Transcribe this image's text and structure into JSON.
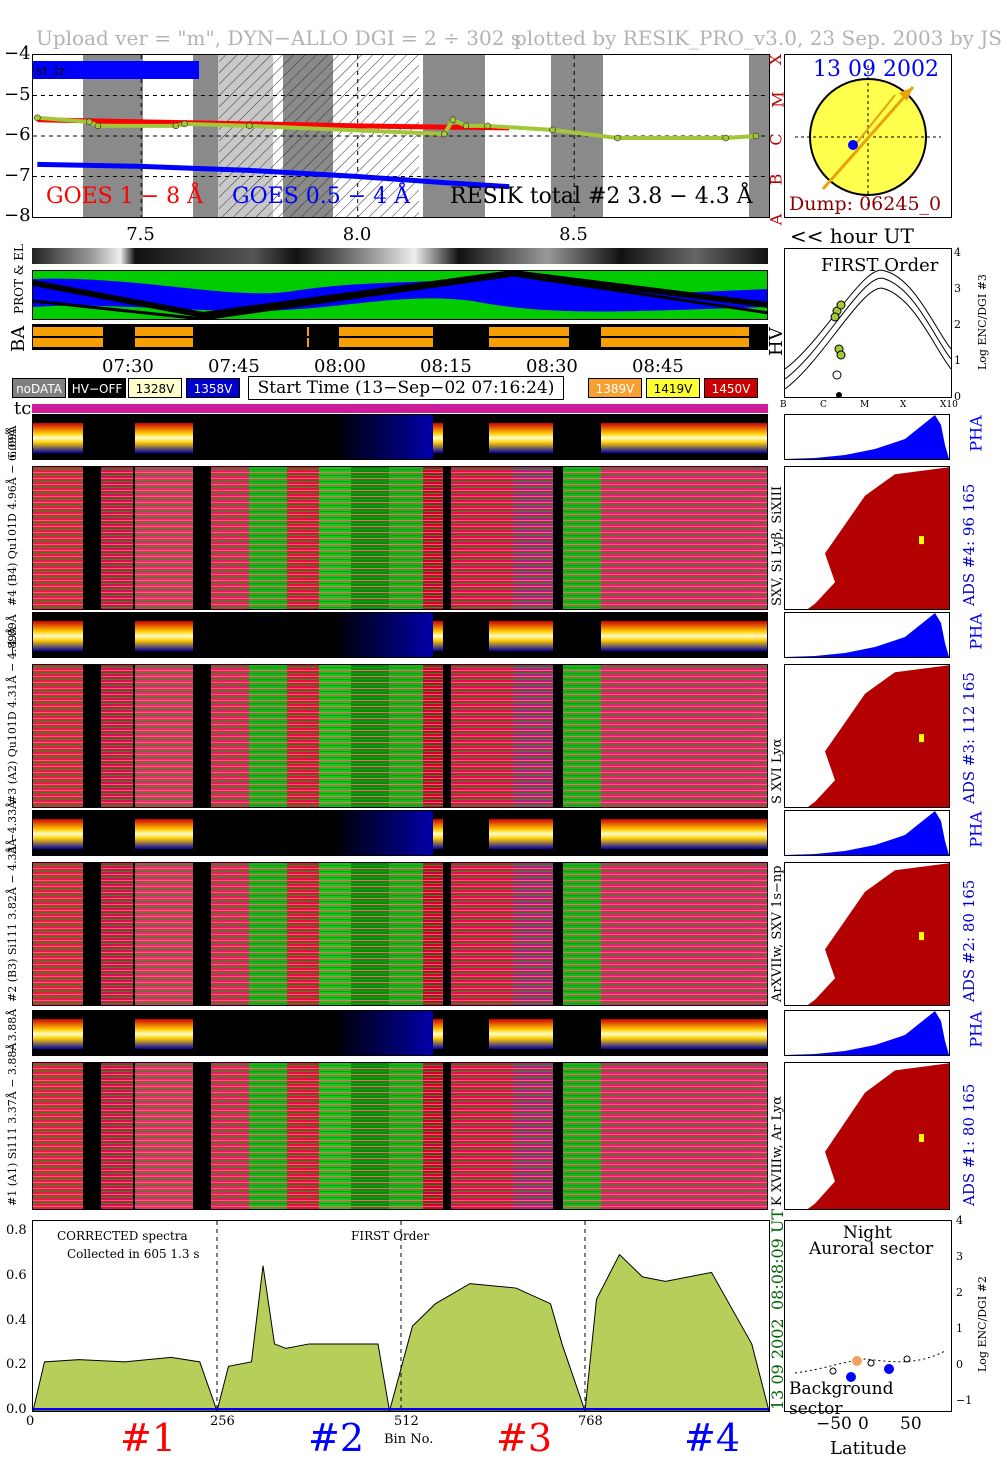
{
  "header": {
    "upload_text": "Upload ver = \"m\", DYN−ALLO DGI =   2 ÷ 302 s",
    "plotted_text": "plotted by RESIK_PRO_v3.0, 23 Sep. 2003 by JS"
  },
  "colors": {
    "goes_long": "#ff0000",
    "goes_short": "#0000ff",
    "resik_total": "#a4c639",
    "gray_band": "#808080",
    "ads_fill": "#b30000",
    "pha_fill": "#0000ff",
    "spectrum_fill": "#b5cf5a",
    "orbit_green": "#00cc00",
    "orbit_blue": "#0000ff",
    "ba_orange": "#f5a000",
    "magenta_bar": "#cc1c9a"
  },
  "top_chart": {
    "chart_data": {
      "type": "line",
      "ylim": [
        -8,
        -4
      ],
      "yticks": [
        "−4",
        "−5",
        "−6",
        "−7",
        "−8"
      ],
      "xlim": [
        7.25,
        8.95
      ],
      "xticks": [
        "7.5",
        "8.0",
        "8.5"
      ],
      "series": [
        {
          "name": "GOES 1 − 8 Å",
          "x": [
            7.26,
            7.5,
            7.75,
            8.0,
            8.2,
            8.35
          ],
          "y": [
            -5.6,
            -5.65,
            -5.7,
            -5.75,
            -5.78,
            -5.8
          ]
        },
        {
          "name": "GOES 0.5 − 4 Å",
          "x": [
            7.26,
            7.5,
            7.75,
            8.0,
            8.2,
            8.35
          ],
          "y": [
            -6.7,
            -6.75,
            -6.85,
            -7.0,
            -7.15,
            -7.25
          ]
        },
        {
          "name": "RESIK total #2  3.8 − 4.3 Å",
          "x": [
            7.26,
            7.38,
            7.4,
            7.58,
            7.6,
            7.75,
            8.2,
            8.22,
            8.25,
            8.3,
            8.45,
            8.6,
            8.85,
            8.92
          ],
          "y": [
            -5.55,
            -5.65,
            -5.75,
            -5.75,
            -5.7,
            -5.75,
            -5.95,
            -5.6,
            -5.75,
            -5.75,
            -5.85,
            -6.05,
            -6.05,
            -6.0
          ]
        }
      ]
    },
    "labels": {
      "st_label": "st_lz",
      "goes_long": "GOES 1 − 8 Å",
      "goes_short": "GOES 0.5 − 4 Å",
      "resik": "RESIK total #2  3.8 − 4.3 Å"
    },
    "class_letters": [
      "X",
      "M",
      "C",
      "B",
      "A"
    ]
  },
  "sun_panel": {
    "date": "13 09 2002",
    "dump": "Dump: 06245_0"
  },
  "hour_label": "<< hour UT",
  "row_labels": {
    "prot_el": "PROT & EL",
    "ba": "BA",
    "hv": "HV"
  },
  "first_order_panel": {
    "title": "FIRST Order",
    "ylabel": "Log ENC/DGI #3",
    "yticks": [
      "4",
      "3",
      "2",
      "1",
      "0"
    ],
    "xticks": [
      "B",
      "C",
      "M",
      "X",
      "X10"
    ]
  },
  "time_axis": {
    "ticks": [
      "07:30",
      "07:45",
      "08:00",
      "08:15",
      "08:30",
      "08:45"
    ]
  },
  "legend": {
    "nodata": "noDATA",
    "hv_off": "HV−OFF",
    "v1328": "1328V",
    "v1358": "1358V",
    "start_time": "Start Time (13−Sep−02 07:16:24)",
    "v1389": "1389V",
    "v1419": "1419V",
    "v1450": "1450V"
  },
  "tc_label": "tc",
  "channels": [
    {
      "pha_label": "6.09Å",
      "main_label": "#4 (B4) Qu101D 4.96Å − 6.09Å",
      "right_label": "SXV, Si Lyβ, SiXIII",
      "ads_label": "ADS #4:   96 165",
      "pha_text": "PHA"
    },
    {
      "pha_label": "−4.89Å",
      "main_label": "#3 (A2) Qu101D 4.31Å − 4.89Å",
      "right_label": "S XVI Lyα",
      "ads_label": "ADS #3:  112 165",
      "pha_text": "PHA"
    },
    {
      "pha_label": "Å −4.33Å",
      "main_label": "#2 (B3) Si111 3.82Å − 4.33Å",
      "right_label": "ArXVIIw, SXV 1s−np",
      "ads_label": "ADS #2:   80 165",
      "pha_text": "PHA"
    },
    {
      "pha_label": "− 3.88Å",
      "main_label": "#1 (A1) Si111 3.37Å − 3.88Å",
      "right_label": "K XVIIIw, Ar Lyα",
      "ads_label": "ADS #1:   80 165",
      "pha_text": "PHA"
    }
  ],
  "spectrum": {
    "note1": "CORRECTED spectra",
    "note2": "Collected in  605 1.3 s",
    "note3": "FIRST Order",
    "side_time": "08:08:09 UT",
    "side_date": "13 09 2002",
    "xlabel": "Bin No.",
    "chart_data": {
      "type": "area",
      "xlim": [
        0,
        1024
      ],
      "ylim": [
        0,
        0.85
      ],
      "xticks": [
        "0",
        "256",
        "512",
        "768"
      ],
      "yticks": [
        "0.0",
        "0.2",
        "0.4",
        "0.6",
        "0.8"
      ],
      "x": [
        0,
        16,
        64,
        128,
        192,
        232,
        256,
        272,
        304,
        320,
        336,
        352,
        384,
        480,
        496,
        528,
        560,
        608,
        672,
        720,
        736,
        768,
        784,
        816,
        848,
        880,
        944,
        1000,
        1024
      ],
      "y": [
        0.0,
        0.22,
        0.23,
        0.22,
        0.24,
        0.22,
        0.0,
        0.2,
        0.22,
        0.65,
        0.3,
        0.28,
        0.3,
        0.3,
        0.0,
        0.38,
        0.48,
        0.57,
        0.55,
        0.48,
        0.3,
        0.0,
        0.5,
        0.7,
        0.6,
        0.58,
        0.62,
        0.3,
        0.0
      ]
    },
    "bin_labels": [
      "#1",
      "#2",
      "#3",
      "#4"
    ],
    "bin_colors": [
      "#ff0000",
      "#0000ff",
      "#ff0000",
      "#0000ff"
    ]
  },
  "latitude_panel": {
    "title1": "Night",
    "title2": "Auroral sector",
    "bottom": "Background sector",
    "ylabel": "Log ENC/DGI #2",
    "xlabel": "Latitude",
    "xticks": [
      "−50",
      "0",
      "50"
    ],
    "yticks": [
      "4",
      "3",
      "2",
      "1",
      "0",
      "−1"
    ]
  }
}
